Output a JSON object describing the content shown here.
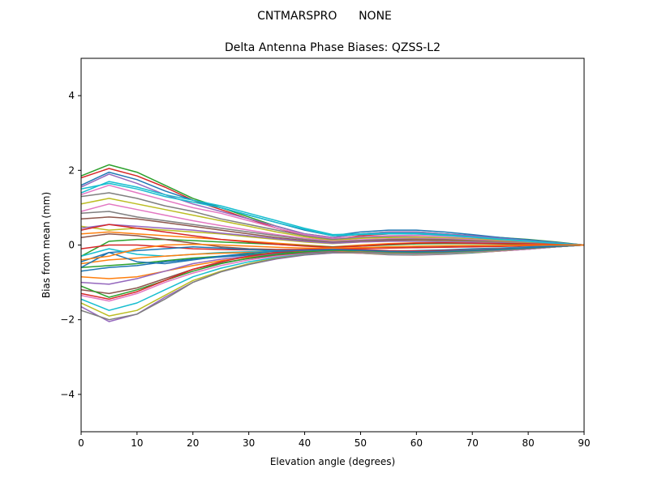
{
  "chart_data": {
    "type": "line",
    "suptitle": "CNTMARSPRO      NONE",
    "title": "Delta Antenna Phase Biases: QZSS-L2",
    "xlabel": "Elevation angle (degrees)",
    "ylabel": "Bias from mean (mm)",
    "xlim": [
      0,
      90
    ],
    "ylim": [
      -5,
      5
    ],
    "x_ticks": [
      0,
      10,
      20,
      30,
      40,
      50,
      60,
      70,
      80,
      90
    ],
    "y_ticks": [
      -4,
      -2,
      0,
      2,
      4
    ],
    "x_tick_labels": [
      "0",
      "10",
      "20",
      "30",
      "40",
      "50",
      "60",
      "70",
      "80",
      "90"
    ],
    "y_tick_labels": [
      "−4",
      "−2",
      "0",
      "2",
      "4"
    ],
    "grid": false,
    "x": [
      0,
      5,
      10,
      15,
      20,
      25,
      30,
      35,
      40,
      45,
      50,
      55,
      60,
      65,
      70,
      75,
      80,
      85,
      90
    ],
    "series": [
      {
        "color": "#2ca02c",
        "values": [
          1.85,
          2.15,
          1.95,
          1.6,
          1.25,
          1.0,
          0.75,
          0.5,
          0.3,
          0.2,
          0.3,
          0.35,
          0.35,
          0.3,
          0.25,
          0.2,
          0.15,
          0.08,
          0.0
        ]
      },
      {
        "color": "#d62728",
        "values": [
          1.8,
          2.05,
          1.85,
          1.55,
          1.2,
          0.95,
          0.7,
          0.45,
          0.25,
          0.15,
          0.25,
          0.3,
          0.3,
          0.28,
          0.22,
          0.18,
          0.12,
          0.06,
          0.0
        ]
      },
      {
        "color": "#1f77b4",
        "values": [
          1.6,
          1.95,
          1.75,
          1.45,
          1.2,
          1.0,
          0.8,
          0.6,
          0.4,
          0.25,
          0.35,
          0.4,
          0.4,
          0.35,
          0.28,
          0.2,
          0.14,
          0.07,
          0.0
        ]
      },
      {
        "color": "#9467bd",
        "values": [
          1.55,
          1.9,
          1.65,
          1.35,
          1.1,
          0.9,
          0.7,
          0.5,
          0.3,
          0.2,
          0.3,
          0.35,
          0.35,
          0.3,
          0.25,
          0.18,
          0.12,
          0.06,
          0.0
        ]
      },
      {
        "color": "#17becf",
        "values": [
          1.4,
          1.7,
          1.55,
          1.35,
          1.2,
          1.05,
          0.85,
          0.65,
          0.45,
          0.28,
          0.3,
          0.32,
          0.32,
          0.28,
          0.22,
          0.16,
          0.11,
          0.05,
          0.0
        ]
      },
      {
        "color": "#e377c2",
        "values": [
          1.35,
          1.6,
          1.4,
          1.2,
          1.0,
          0.85,
          0.65,
          0.45,
          0.28,
          0.18,
          0.22,
          0.25,
          0.26,
          0.24,
          0.2,
          0.15,
          0.1,
          0.05,
          0.0
        ]
      },
      {
        "color": "#7f7f7f",
        "values": [
          1.3,
          1.4,
          1.25,
          1.05,
          0.9,
          0.7,
          0.55,
          0.4,
          0.25,
          0.15,
          0.2,
          0.22,
          0.22,
          0.2,
          0.17,
          0.13,
          0.09,
          0.04,
          0.0
        ]
      },
      {
        "color": "#bcbd22",
        "values": [
          1.1,
          1.25,
          1.1,
          0.95,
          0.8,
          0.65,
          0.5,
          0.35,
          0.22,
          0.12,
          0.18,
          0.2,
          0.21,
          0.19,
          0.16,
          0.12,
          0.08,
          0.04,
          0.0
        ]
      },
      {
        "color": "#e377c2",
        "values": [
          0.9,
          1.1,
          0.95,
          0.8,
          0.65,
          0.52,
          0.4,
          0.28,
          0.18,
          0.1,
          0.14,
          0.17,
          0.18,
          0.17,
          0.14,
          0.1,
          0.07,
          0.03,
          0.0
        ]
      },
      {
        "color": "#7f7f7f",
        "values": [
          0.85,
          0.9,
          0.75,
          0.65,
          0.55,
          0.45,
          0.35,
          0.25,
          0.15,
          0.08,
          0.12,
          0.15,
          0.16,
          0.15,
          0.12,
          0.09,
          0.06,
          0.03,
          0.0
        ]
      },
      {
        "color": "#8c564b",
        "values": [
          0.7,
          0.75,
          0.7,
          0.6,
          0.5,
          0.4,
          0.3,
          0.2,
          0.12,
          0.06,
          0.1,
          0.13,
          0.14,
          0.13,
          0.11,
          0.08,
          0.05,
          0.02,
          0.0
        ]
      },
      {
        "color": "#bcbd22",
        "values": [
          0.5,
          0.4,
          0.45,
          0.4,
          0.35,
          0.3,
          0.22,
          0.15,
          0.08,
          0.04,
          0.08,
          0.1,
          0.11,
          0.1,
          0.09,
          0.07,
          0.05,
          0.02,
          0.0
        ]
      },
      {
        "color": "#9467bd",
        "values": [
          0.45,
          0.55,
          0.5,
          0.45,
          0.4,
          0.32,
          0.25,
          0.17,
          0.1,
          0.05,
          0.08,
          0.1,
          0.1,
          0.09,
          0.08,
          0.06,
          0.04,
          0.02,
          0.0
        ]
      },
      {
        "color": "#ff7f0e",
        "values": [
          0.3,
          0.35,
          0.3,
          0.25,
          0.2,
          0.15,
          0.1,
          0.05,
          0.0,
          -0.05,
          0.0,
          0.04,
          0.06,
          0.06,
          0.05,
          0.04,
          0.03,
          0.01,
          0.0
        ]
      },
      {
        "color": "#2ca02c",
        "values": [
          -0.3,
          0.1,
          0.15,
          0.15,
          0.12,
          0.08,
          0.05,
          0.02,
          -0.02,
          -0.05,
          -0.03,
          0.0,
          0.03,
          0.04,
          0.04,
          0.03,
          0.02,
          0.01,
          0.0
        ]
      },
      {
        "color": "#8c564b",
        "values": [
          0.2,
          0.3,
          0.25,
          0.15,
          0.05,
          -0.05,
          -0.1,
          -0.12,
          -0.12,
          -0.1,
          -0.08,
          -0.06,
          -0.04,
          -0.03,
          -0.02,
          -0.01,
          -0.01,
          0.0,
          0.0
        ]
      },
      {
        "color": "#d62728",
        "values": [
          -0.1,
          0.0,
          0.0,
          -0.05,
          -0.1,
          -0.12,
          -0.13,
          -0.13,
          -0.12,
          -0.1,
          -0.09,
          -0.08,
          -0.07,
          -0.06,
          -0.05,
          -0.04,
          -0.02,
          -0.01,
          0.0
        ]
      },
      {
        "color": "#1f77b4",
        "values": [
          -0.45,
          -0.2,
          -0.15,
          -0.1,
          -0.05,
          -0.08,
          -0.12,
          -0.15,
          -0.15,
          -0.14,
          -0.15,
          -0.16,
          -0.15,
          -0.13,
          -0.1,
          -0.08,
          -0.05,
          -0.02,
          0.0
        ]
      },
      {
        "color": "#17becf",
        "values": [
          -0.3,
          -0.1,
          -0.25,
          -0.3,
          -0.25,
          -0.2,
          -0.18,
          -0.16,
          -0.15,
          -0.14,
          -0.15,
          -0.17,
          -0.17,
          -0.15,
          -0.12,
          -0.09,
          -0.06,
          -0.03,
          0.0
        ]
      },
      {
        "color": "#ff7f0e",
        "values": [
          -0.5,
          -0.4,
          -0.35,
          -0.3,
          -0.25,
          -0.22,
          -0.2,
          -0.18,
          -0.17,
          -0.16,
          -0.17,
          -0.19,
          -0.2,
          -0.19,
          -0.17,
          -0.13,
          -0.09,
          -0.04,
          0.0
        ]
      },
      {
        "color": "#2ca02c",
        "values": [
          -0.6,
          -0.55,
          -0.5,
          -0.42,
          -0.35,
          -0.3,
          -0.25,
          -0.21,
          -0.19,
          -0.17,
          -0.19,
          -0.22,
          -0.22,
          -0.2,
          -0.17,
          -0.13,
          -0.09,
          -0.04,
          0.0
        ]
      },
      {
        "color": "#1f77b4",
        "values": [
          -0.7,
          -0.6,
          -0.55,
          -0.45,
          -0.38,
          -0.32,
          -0.27,
          -0.23,
          -0.2,
          -0.18,
          -0.2,
          -0.23,
          -0.24,
          -0.22,
          -0.19,
          -0.15,
          -0.1,
          -0.05,
          0.0
        ]
      },
      {
        "color": "#ff7f0e",
        "values": [
          -0.85,
          -0.9,
          -0.85,
          -0.7,
          -0.55,
          -0.42,
          -0.32,
          -0.25,
          -0.2,
          -0.17,
          -0.2,
          -0.24,
          -0.25,
          -0.23,
          -0.2,
          -0.15,
          -0.1,
          -0.05,
          0.0
        ]
      },
      {
        "color": "#9467bd",
        "values": [
          -1.0,
          -1.05,
          -0.9,
          -0.7,
          -0.5,
          -0.38,
          -0.3,
          -0.24,
          -0.2,
          -0.18,
          -0.21,
          -0.25,
          -0.26,
          -0.24,
          -0.2,
          -0.16,
          -0.11,
          -0.05,
          0.0
        ]
      },
      {
        "color": "#8c564b",
        "values": [
          -1.2,
          -1.3,
          -1.15,
          -0.9,
          -0.65,
          -0.48,
          -0.36,
          -0.28,
          -0.22,
          -0.19,
          -0.22,
          -0.26,
          -0.27,
          -0.25,
          -0.21,
          -0.16,
          -0.11,
          -0.05,
          0.0
        ]
      },
      {
        "color": "#e377c2",
        "values": [
          -1.35,
          -1.5,
          -1.3,
          -1.0,
          -0.75,
          -0.55,
          -0.4,
          -0.3,
          -0.24,
          -0.2,
          -0.22,
          -0.25,
          -0.26,
          -0.24,
          -0.2,
          -0.16,
          -0.11,
          -0.05,
          0.0
        ]
      },
      {
        "color": "#17becf",
        "values": [
          -1.45,
          -1.75,
          -1.55,
          -1.2,
          -0.85,
          -0.62,
          -0.45,
          -0.33,
          -0.25,
          -0.2,
          -0.21,
          -0.24,
          -0.25,
          -0.23,
          -0.2,
          -0.15,
          -0.1,
          -0.05,
          0.0
        ]
      },
      {
        "color": "#bcbd22",
        "values": [
          -1.55,
          -1.9,
          -1.75,
          -1.35,
          -0.95,
          -0.7,
          -0.5,
          -0.35,
          -0.26,
          -0.21,
          -0.21,
          -0.23,
          -0.24,
          -0.22,
          -0.19,
          -0.15,
          -0.1,
          -0.05,
          0.0
        ]
      },
      {
        "color": "#9467bd",
        "values": [
          -1.65,
          -2.05,
          -1.85,
          -1.4,
          -1.0,
          -0.72,
          -0.52,
          -0.37,
          -0.27,
          -0.21,
          -0.2,
          -0.22,
          -0.23,
          -0.21,
          -0.18,
          -0.14,
          -0.1,
          -0.05,
          0.0
        ]
      },
      {
        "color": "#7f7f7f",
        "values": [
          -1.75,
          -2.0,
          -1.85,
          -1.45,
          -1.0,
          -0.72,
          -0.52,
          -0.36,
          -0.26,
          -0.2,
          -0.19,
          -0.21,
          -0.22,
          -0.2,
          -0.17,
          -0.13,
          -0.09,
          -0.04,
          0.0
        ]
      },
      {
        "color": "#2ca02c",
        "values": [
          -1.1,
          -1.4,
          -1.2,
          -0.95,
          -0.7,
          -0.5,
          -0.35,
          -0.25,
          -0.18,
          -0.14,
          -0.15,
          -0.18,
          -0.19,
          -0.18,
          -0.15,
          -0.12,
          -0.08,
          -0.04,
          0.0
        ]
      },
      {
        "color": "#d62728",
        "values": [
          -1.3,
          -1.45,
          -1.25,
          -0.95,
          -0.65,
          -0.45,
          -0.3,
          -0.2,
          -0.14,
          -0.11,
          -0.12,
          -0.15,
          -0.16,
          -0.15,
          -0.13,
          -0.1,
          -0.07,
          -0.03,
          0.0
        ]
      },
      {
        "color": "#1f77b4",
        "values": [
          -0.6,
          -0.2,
          -0.45,
          -0.5,
          -0.4,
          -0.3,
          -0.22,
          -0.17,
          -0.14,
          -0.12,
          -0.14,
          -0.17,
          -0.18,
          -0.17,
          -0.14,
          -0.11,
          -0.07,
          -0.03,
          0.0
        ]
      },
      {
        "color": "#17becf",
        "values": [
          1.5,
          1.65,
          1.5,
          1.3,
          1.15,
          1.0,
          0.8,
          0.6,
          0.42,
          0.25,
          0.28,
          0.3,
          0.3,
          0.26,
          0.21,
          0.15,
          0.1,
          0.05,
          0.0
        ]
      },
      {
        "color": "#d62728",
        "values": [
          0.4,
          0.55,
          0.45,
          0.35,
          0.25,
          0.15,
          0.08,
          0.02,
          -0.03,
          -0.06,
          -0.03,
          0.02,
          0.05,
          0.06,
          0.05,
          0.04,
          0.03,
          0.01,
          0.0
        ]
      },
      {
        "color": "#ff7f0e",
        "values": [
          -0.4,
          -0.3,
          -0.1,
          0.0,
          0.02,
          0.0,
          -0.03,
          -0.06,
          -0.08,
          -0.08,
          -0.07,
          -0.05,
          -0.03,
          -0.02,
          -0.01,
          -0.01,
          0.0,
          0.0,
          0.0
        ]
      }
    ]
  }
}
